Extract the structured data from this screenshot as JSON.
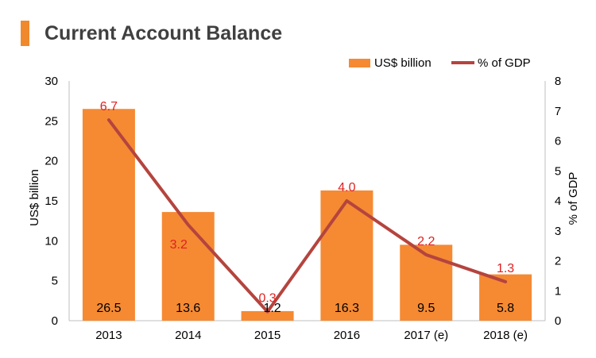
{
  "header": {
    "title": "Current Account Balance"
  },
  "colors": {
    "bar": "#F58A33",
    "line": "#B5443E",
    "label_red": "#E02020",
    "axis": "#BFBFBF",
    "text": "#000000"
  },
  "chart_data": {
    "type": "bar",
    "categories": [
      "2013",
      "2014",
      "2015",
      "2016",
      "2017 (e)",
      "2018 (e)"
    ],
    "series": [
      {
        "name": "US$ billion",
        "type": "bar",
        "axis": "left",
        "values": [
          26.5,
          13.6,
          1.2,
          16.3,
          9.5,
          5.8
        ],
        "labels": [
          "26.5",
          "13.6",
          "1.2",
          "16.3",
          "9.5",
          "5.8"
        ]
      },
      {
        "name": "% of GDP",
        "type": "line",
        "axis": "right",
        "values": [
          6.7,
          3.2,
          0.3,
          4.0,
          2.2,
          1.3
        ],
        "labels": [
          "6.7",
          "3.2",
          "0.3",
          "4.0",
          "2.2",
          "1.3"
        ]
      }
    ],
    "ylabel": "US$ billion",
    "y2label": "% of GDP",
    "ylim": [
      0,
      30
    ],
    "y2lim": [
      0,
      8
    ],
    "yticks": [
      "0",
      "5",
      "10",
      "15",
      "20",
      "25",
      "30"
    ],
    "y2ticks": [
      "0",
      "1",
      "2",
      "3",
      "4",
      "5",
      "6",
      "7",
      "8"
    ],
    "legend": {
      "placement": "top-right"
    },
    "grid": false
  }
}
